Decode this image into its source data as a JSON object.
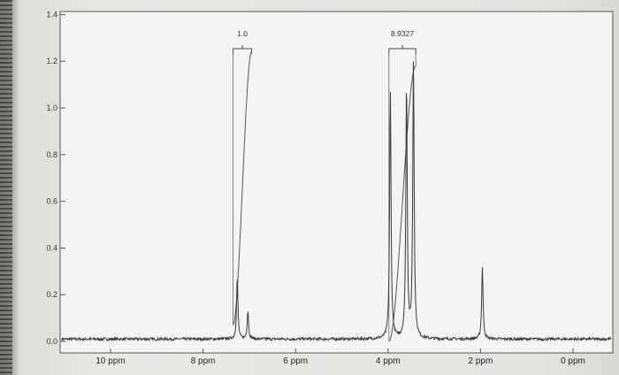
{
  "chart_data": {
    "type": "line",
    "title": "",
    "xlabel": "",
    "ylabel": "",
    "x_unit": "ppm",
    "x_reversed": true,
    "xlim": [
      11.1,
      -0.6
    ],
    "ylim": [
      0.0,
      1.4
    ],
    "grid": false,
    "y_ticks": [
      {
        "value": 0.0,
        "label": "0.0"
      },
      {
        "value": 0.2,
        "label": "0.2"
      },
      {
        "value": 0.4,
        "label": "0.4"
      },
      {
        "value": 0.6,
        "label": "0.6"
      },
      {
        "value": 0.8,
        "label": "0.8"
      },
      {
        "value": 1.0,
        "label": "1.0"
      },
      {
        "value": 1.2,
        "label": "1.2"
      },
      {
        "value": 1.4,
        "label": "1.4"
      }
    ],
    "x_ticks": [
      {
        "value": 10,
        "label": "10 ppm"
      },
      {
        "value": 8,
        "label": "8 ppm"
      },
      {
        "value": 6,
        "label": "6 ppm"
      },
      {
        "value": 4,
        "label": "4 ppm"
      },
      {
        "value": 2,
        "label": "2 ppm"
      },
      {
        "value": 0,
        "label": "0 ppm"
      }
    ],
    "peaks": [
      {
        "ppm": 7.26,
        "height": 0.26
      },
      {
        "ppm": 7.03,
        "height": 0.12
      },
      {
        "ppm": 3.95,
        "height": 1.06
      },
      {
        "ppm": 3.6,
        "height": 1.09
      },
      {
        "ppm": 3.45,
        "height": 1.18
      },
      {
        "ppm": 1.96,
        "height": 0.31
      }
    ],
    "integrals": [
      {
        "from": 7.35,
        "to": 6.95,
        "value": "1.0",
        "curve_start": 0.07,
        "curve_end": 1.24
      },
      {
        "from": 3.98,
        "to": 3.4,
        "value": "8.9327",
        "curve_start": 0.0,
        "curve_end": 1.18
      }
    ]
  }
}
